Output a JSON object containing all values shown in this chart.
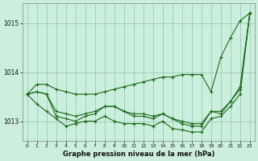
{
  "title": "Graphe pression niveau de la mer (hPa)",
  "xlabel": "Graphe pression niveau de la mer (hPa)",
  "hours": [
    0,
    1,
    2,
    3,
    4,
    5,
    6,
    7,
    8,
    9,
    10,
    11,
    12,
    13,
    14,
    15,
    16,
    17,
    18,
    19,
    20,
    21,
    22,
    23
  ],
  "line_max": [
    1013.55,
    1013.75,
    1013.75,
    1013.65,
    1013.6,
    1013.55,
    1013.55,
    1013.55,
    1013.6,
    1013.65,
    1013.7,
    1013.75,
    1013.8,
    1013.85,
    1013.9,
    1013.9,
    1013.95,
    1013.95,
    1013.95,
    1013.6,
    1014.3,
    1014.7,
    1015.05,
    1015.2
  ],
  "line_min": [
    1013.55,
    1013.35,
    1013.2,
    1013.05,
    1012.9,
    1012.95,
    1013.0,
    1013.0,
    1013.1,
    1013.0,
    1012.95,
    1012.95,
    1012.95,
    1012.9,
    1013.0,
    1012.85,
    1012.82,
    1012.78,
    1012.78,
    1013.05,
    1013.1,
    1013.3,
    1013.55,
    1015.2
  ],
  "line_mean": [
    1013.55,
    1013.6,
    1013.55,
    1013.2,
    1013.15,
    1013.1,
    1013.15,
    1013.2,
    1013.3,
    1013.3,
    1013.2,
    1013.15,
    1013.15,
    1013.1,
    1013.15,
    1013.05,
    1013.0,
    1012.95,
    1012.95,
    1013.2,
    1013.2,
    1013.4,
    1013.7,
    1015.2
  ],
  "line_instant": [
    1013.55,
    1013.6,
    1013.55,
    1013.1,
    1013.05,
    1013.0,
    1013.1,
    1013.15,
    1013.3,
    1013.3,
    1013.2,
    1013.1,
    1013.1,
    1013.05,
    1013.15,
    1013.05,
    1012.95,
    1012.9,
    1012.9,
    1013.2,
    1013.15,
    1013.4,
    1013.65,
    1015.2
  ],
  "line_color": "#1a6b1a",
  "bg_color": "#cceedd",
  "grid_color": "#99ccbb",
  "ylim_min": 1012.6,
  "ylim_max": 1015.4,
  "yticks": [
    1013,
    1014,
    1015
  ],
  "xticks": [
    0,
    1,
    2,
    3,
    4,
    5,
    6,
    7,
    8,
    9,
    10,
    11,
    12,
    13,
    14,
    15,
    16,
    17,
    18,
    19,
    20,
    21,
    22,
    23
  ]
}
